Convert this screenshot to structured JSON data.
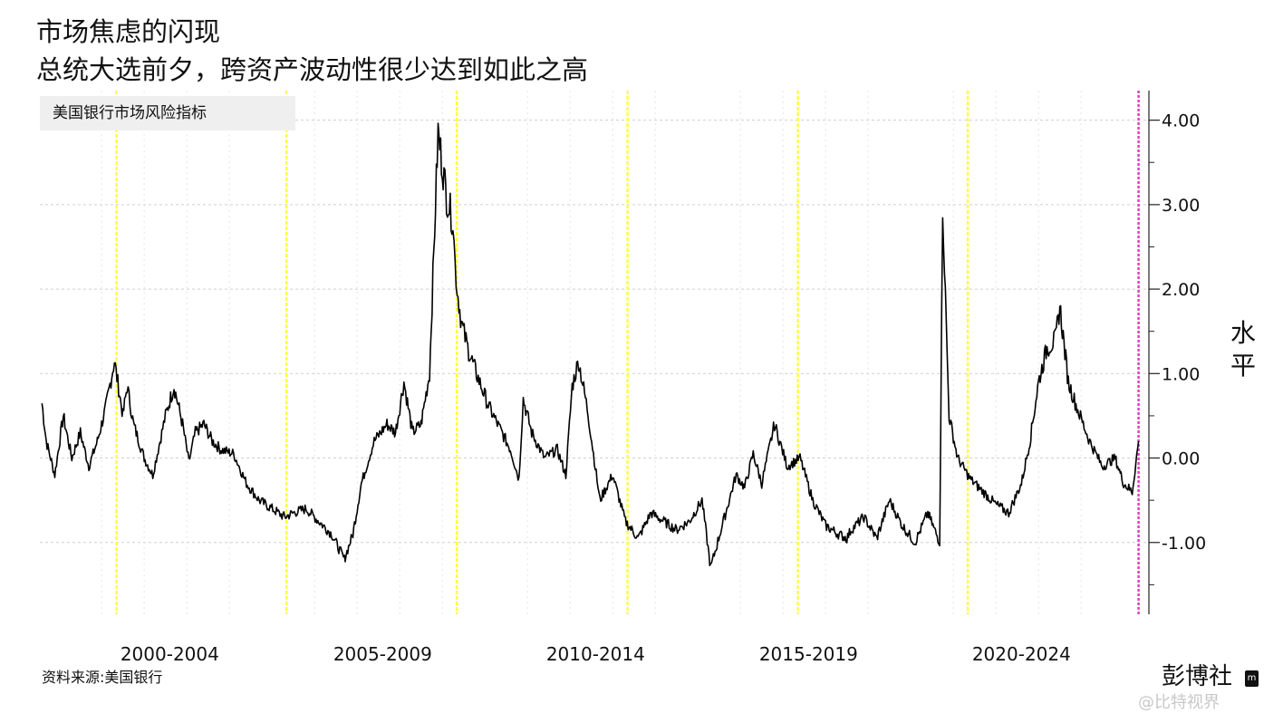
{
  "title": "市场焦虑的闪现",
  "subtitle": "总统大选前夕，跨资产波动性很少达到如此之高",
  "source": "资料来源:美国银行",
  "brand": "彭博社",
  "brand_mark": "m",
  "watermark": "@比特视界",
  "ylabel_chars": [
    "水",
    "平"
  ],
  "colors": {
    "line": "#000000",
    "election_marker": "#ffff44",
    "current_marker": "#e040c0",
    "grid": "#cfcfcf",
    "legend_bg": "#efefef"
  },
  "chart_data": {
    "type": "line",
    "title": "市场焦虑的闪现",
    "subtitle": "总统大选前夕，跨资产波动性很少达到如此之高",
    "ylabel": "水平",
    "series": [
      {
        "name": "美国银行市场风险指标",
        "x": [
          1999.1,
          1999.2,
          1999.4,
          1999.6,
          1999.8,
          2000.0,
          2000.2,
          2000.4,
          2000.6,
          2000.8,
          2001.0,
          2001.1,
          2001.25,
          2001.5,
          2001.7,
          2002.0,
          2002.2,
          2002.4,
          2002.55,
          2002.7,
          2002.9,
          2003.1,
          2003.3,
          2003.6,
          2003.9,
          2004.2,
          2004.5,
          2004.8,
          2005.0,
          2005.3,
          2005.6,
          2005.9,
          2006.2,
          2006.4,
          2006.6,
          2006.9,
          2007.2,
          2007.4,
          2007.6,
          2007.8,
          2008.0,
          2008.2,
          2008.4,
          2008.6,
          2008.75,
          2008.8,
          2008.85,
          2008.95,
          2009.1,
          2009.3,
          2009.6,
          2009.9,
          2010.1,
          2010.3,
          2010.4,
          2010.6,
          2010.9,
          2011.2,
          2011.4,
          2011.55,
          2011.7,
          2011.9,
          2012.2,
          2012.5,
          2012.8,
          2013.1,
          2013.4,
          2013.7,
          2014.0,
          2014.3,
          2014.6,
          2014.8,
          2015.1,
          2015.4,
          2015.6,
          2015.8,
          2016.0,
          2016.3,
          2016.6,
          2016.9,
          2017.2,
          2017.5,
          2017.8,
          2018.0,
          2018.1,
          2018.4,
          2018.7,
          2019.0,
          2019.3,
          2019.6,
          2019.9,
          2020.1,
          2020.18,
          2020.25,
          2020.4,
          2020.6,
          2020.9,
          2021.2,
          2021.5,
          2021.8,
          2022.1,
          2022.3,
          2022.5,
          2022.7,
          2022.9,
          2023.0,
          2023.2,
          2023.4,
          2023.7,
          2024.0,
          2024.3,
          2024.5,
          2024.7,
          2024.85
        ],
        "y": [
          0.65,
          0.2,
          -0.2,
          0.5,
          0.0,
          0.3,
          -0.1,
          0.2,
          0.6,
          1.15,
          0.5,
          0.85,
          0.4,
          0.0,
          -0.2,
          0.5,
          0.85,
          0.4,
          -0.05,
          0.3,
          0.4,
          0.2,
          0.1,
          0.05,
          -0.3,
          -0.5,
          -0.6,
          -0.7,
          -0.65,
          -0.6,
          -0.75,
          -0.9,
          -1.2,
          -0.9,
          -0.3,
          0.2,
          0.4,
          0.3,
          0.9,
          0.3,
          0.4,
          1.0,
          3.85,
          3.1,
          2.8,
          2.3,
          2.0,
          1.6,
          1.3,
          1.0,
          0.6,
          0.3,
          0.1,
          -0.25,
          0.7,
          0.3,
          0.0,
          0.1,
          -0.2,
          0.85,
          1.15,
          0.6,
          -0.5,
          -0.2,
          -0.75,
          -0.95,
          -0.65,
          -0.75,
          -0.85,
          -0.75,
          -0.5,
          -1.3,
          -0.75,
          -0.2,
          -0.35,
          0.05,
          -0.3,
          0.4,
          -0.1,
          0.0,
          -0.5,
          -0.8,
          -0.9,
          -0.95,
          -0.85,
          -0.7,
          -0.95,
          -0.5,
          -0.8,
          -1.0,
          -0.65,
          -0.9,
          -1.0,
          3.0,
          0.5,
          0.0,
          -0.25,
          -0.4,
          -0.55,
          -0.65,
          -0.3,
          0.2,
          0.9,
          1.3,
          1.4,
          1.8,
          0.9,
          0.6,
          0.2,
          -0.1,
          0.0,
          -0.3,
          -0.4,
          0.2
        ]
      }
    ],
    "election_years": [
      2000.85,
      2004.84,
      2008.84,
      2012.85,
      2016.85,
      2020.84
    ],
    "current_date": 2024.85,
    "xlim": [
      1999.05,
      2025.05
    ],
    "ylim": [
      -1.85,
      4.35
    ],
    "yticks": [
      4.0,
      3.0,
      2.0,
      1.0,
      0.0,
      -1.0
    ],
    "ytick_labels": [
      "4.00",
      "3.00",
      "2.00",
      "1.00",
      "0.00",
      "-1.00"
    ],
    "xtick_labels": [
      "2000-2004",
      "2005-2009",
      "2010-2014",
      "2015-2019",
      "2020-2024"
    ],
    "xtick_centers": [
      2002.1,
      2007.1,
      2012.1,
      2017.1,
      2022.1
    ],
    "grid": true,
    "legend": "top-left"
  }
}
